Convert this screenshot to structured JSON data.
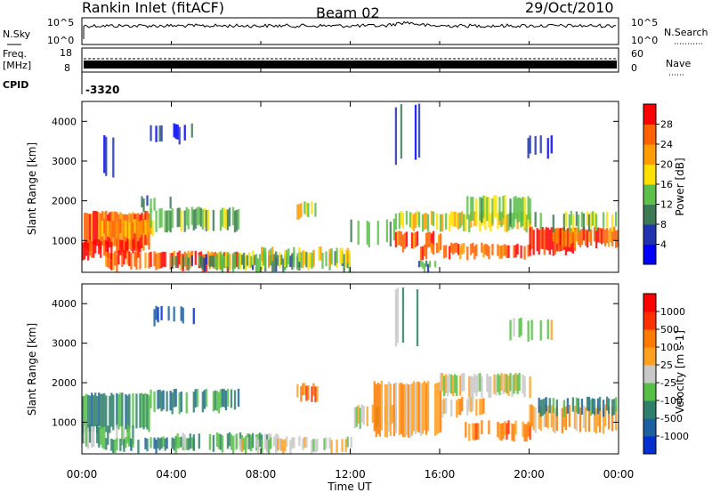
{
  "header": {
    "station": "Rankin Inlet (fitACF)",
    "beam": "Beam 02",
    "date": "29/Oct/2010"
  },
  "top_panels": {
    "nsky_label": "N.Sky",
    "nsky_ticks": [
      "10^5",
      "10^0"
    ],
    "nsearch_label": "N.Search",
    "nsearch_ticks": [
      "10^5",
      "10^0"
    ],
    "freq_label": "Freq.",
    "freq_unit": "[MHz]",
    "freq_ticks": [
      "18",
      "8"
    ],
    "nave_label": "Nave",
    "nave_ticks": [
      "60",
      "0"
    ],
    "cpid_label": "CPID",
    "cpid_value": "-3320"
  },
  "colors": {
    "power_scale": [
      "#0000ff",
      "#2233b0",
      "#3c7a55",
      "#5cc04a",
      "#ffe000",
      "#ff9c00",
      "#ff6000",
      "#ff0000"
    ],
    "velocity_scale": [
      "#0030d0",
      "#1c60a0",
      "#2f7f6a",
      "#55c045",
      "#c8c8c8",
      "#ffa020",
      "#ff7a00",
      "#ff3000",
      "#ff0000"
    ]
  },
  "chart_data": [
    {
      "type": "heatmap",
      "name": "power",
      "ylabel": "Slant Range [km]",
      "yticks": [
        "1000",
        "2000",
        "3000",
        "4000"
      ],
      "ylim": [
        200,
        4500
      ],
      "colorbar_label": "Power [dB]",
      "colorbar_ticks": [
        "4",
        "8",
        "12",
        "16",
        "20",
        "24",
        "28"
      ]
    },
    {
      "type": "heatmap",
      "name": "velocity",
      "ylabel": "Slant Range [km]",
      "yticks": [
        "1000",
        "2000",
        "3000",
        "4000"
      ],
      "ylim": [
        200,
        4500
      ],
      "colorbar_label": "Velocity [m s-1]",
      "colorbar_ticks": [
        "1000",
        "500",
        "100",
        "25",
        "-25",
        "-100",
        "-500",
        "-1000"
      ]
    }
  ],
  "xaxis": {
    "label": "Time UT",
    "ticks": [
      "00:00",
      "04:00",
      "08:00",
      "12:00",
      "16:00",
      "20:00",
      "00:00"
    ]
  }
}
